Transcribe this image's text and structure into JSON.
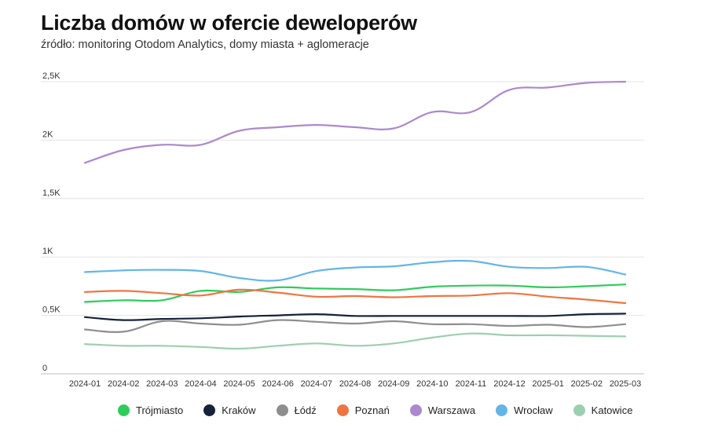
{
  "chart_data": {
    "type": "line",
    "title": "Liczba domów w ofercie deweloperów",
    "subtitle": "źródło: monitoring Otodom Analytics, domy miasta + aglomeracje",
    "xlabel": "",
    "ylabel": "",
    "ylim": [
      0,
      2500
    ],
    "yticks": [
      0,
      500,
      1000,
      1500,
      2000,
      2500
    ],
    "ytick_labels": [
      "0",
      "0,5K",
      "1K",
      "1,5K",
      "2K",
      "2,5K"
    ],
    "grid": "horizontal",
    "legend_position": "bottom",
    "x": [
      "2024-01",
      "2024-02",
      "2024-03",
      "2024-04",
      "2024-05",
      "2024-06",
      "2024-07",
      "2024-08",
      "2024-09",
      "2024-10",
      "2024-11",
      "2024-12",
      "2025-01",
      "2025-02",
      "2025-03"
    ],
    "series": [
      {
        "name": "Trójmiasto",
        "color": "#2ecc5b",
        "values": [
          615,
          630,
          630,
          710,
          700,
          740,
          730,
          725,
          715,
          745,
          755,
          755,
          740,
          750,
          765
        ]
      },
      {
        "name": "Kraków",
        "color": "#16213a",
        "values": [
          485,
          460,
          470,
          475,
          490,
          500,
          510,
          495,
          495,
          495,
          495,
          495,
          495,
          510,
          515
        ]
      },
      {
        "name": "Łódź",
        "color": "#8e8e8e",
        "values": [
          380,
          360,
          450,
          430,
          420,
          460,
          445,
          430,
          450,
          425,
          425,
          410,
          420,
          400,
          425
        ]
      },
      {
        "name": "Poznań",
        "color": "#ef7541",
        "values": [
          700,
          710,
          690,
          670,
          720,
          695,
          660,
          665,
          655,
          665,
          670,
          690,
          660,
          635,
          605
        ]
      },
      {
        "name": "Warszawa",
        "color": "#ac88cf",
        "values": [
          1805,
          1915,
          1960,
          1960,
          2080,
          2110,
          2130,
          2110,
          2100,
          2240,
          2240,
          2430,
          2450,
          2490,
          2500
        ]
      },
      {
        "name": "Wrocław",
        "color": "#63b5e6",
        "values": [
          870,
          885,
          890,
          880,
          820,
          800,
          880,
          910,
          920,
          955,
          965,
          915,
          905,
          915,
          850
        ]
      },
      {
        "name": "Katowice",
        "color": "#9ccfb0",
        "values": [
          255,
          240,
          240,
          230,
          215,
          240,
          260,
          240,
          260,
          310,
          345,
          330,
          330,
          325,
          320
        ]
      }
    ]
  }
}
